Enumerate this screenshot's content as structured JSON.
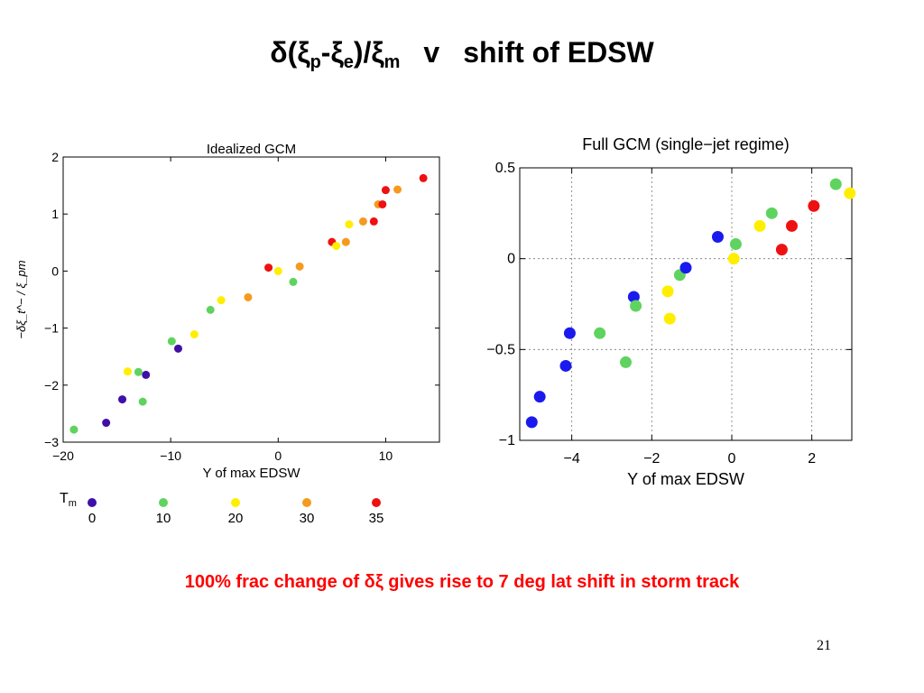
{
  "slide": {
    "title_parts": {
      "delta": "δ(ξ",
      "sub_p": "p",
      "dash": "-ξ",
      "sub_e": "e",
      "slash": ")/ξ",
      "sub_m": "m",
      "v": "v",
      "rest": "shift of EDSW"
    },
    "caption": "100% frac change of δξ gives rise to 7 deg lat shift in storm track",
    "page_number": "21"
  },
  "legend": {
    "label": "T",
    "label_sub": "m",
    "items": [
      {
        "label": "0",
        "color": "#3f0fa8"
      },
      {
        "label": "10",
        "color": "#5fd35f"
      },
      {
        "label": "20",
        "color": "#ffee00"
      },
      {
        "label": "30",
        "color": "#f59a1f"
      },
      {
        "label": "35",
        "color": "#ee1111"
      }
    ]
  },
  "chart_data": [
    {
      "type": "scatter",
      "title": "Idealized GCM",
      "xlabel": "Y of max EDSW",
      "ylabel": "−δξ_t^− / ξ_pm",
      "xlim": [
        -20,
        15
      ],
      "ylim": [
        -3,
        2
      ],
      "xticks": [
        -20,
        -10,
        0,
        10
      ],
      "xtick_labels": [
        "−20",
        "−10",
        "0",
        "10"
      ],
      "yticks": [
        -3,
        -2,
        -1,
        0,
        1,
        2
      ],
      "ytick_labels": [
        "−3",
        "−2",
        "−1",
        "0",
        "1",
        "2"
      ],
      "grid": false,
      "points": [
        {
          "x": -19.0,
          "y": -2.78,
          "color": "#5fd35f"
        },
        {
          "x": -16.0,
          "y": -2.66,
          "color": "#3f0fa8"
        },
        {
          "x": -14.5,
          "y": -2.25,
          "color": "#3f0fa8"
        },
        {
          "x": -14.0,
          "y": -1.76,
          "color": "#ffee00"
        },
        {
          "x": -13.0,
          "y": -1.77,
          "color": "#5fd35f"
        },
        {
          "x": -12.6,
          "y": -2.29,
          "color": "#5fd35f"
        },
        {
          "x": -12.3,
          "y": -1.82,
          "color": "#3f0fa8"
        },
        {
          "x": -9.9,
          "y": -1.23,
          "color": "#5fd35f"
        },
        {
          "x": -9.3,
          "y": -1.36,
          "color": "#3f0fa8"
        },
        {
          "x": -7.8,
          "y": -1.11,
          "color": "#ffee00"
        },
        {
          "x": -6.3,
          "y": -0.68,
          "color": "#5fd35f"
        },
        {
          "x": -5.3,
          "y": -0.51,
          "color": "#ffee00"
        },
        {
          "x": -2.8,
          "y": -0.46,
          "color": "#f59a1f"
        },
        {
          "x": -0.9,
          "y": 0.06,
          "color": "#ee1111"
        },
        {
          "x": 0.0,
          "y": 0.0,
          "color": "#ffee00"
        },
        {
          "x": 1.4,
          "y": -0.19,
          "color": "#5fd35f"
        },
        {
          "x": 2.0,
          "y": 0.08,
          "color": "#f59a1f"
        },
        {
          "x": 5.0,
          "y": 0.51,
          "color": "#ee1111"
        },
        {
          "x": 5.4,
          "y": 0.44,
          "color": "#ffee00"
        },
        {
          "x": 6.3,
          "y": 0.51,
          "color": "#f59a1f"
        },
        {
          "x": 6.6,
          "y": 0.82,
          "color": "#ffee00"
        },
        {
          "x": 7.9,
          "y": 0.87,
          "color": "#f59a1f"
        },
        {
          "x": 8.9,
          "y": 0.87,
          "color": "#ee1111"
        },
        {
          "x": 9.3,
          "y": 1.17,
          "color": "#f59a1f"
        },
        {
          "x": 9.7,
          "y": 1.17,
          "color": "#ee1111"
        },
        {
          "x": 10.0,
          "y": 1.42,
          "color": "#ee1111"
        },
        {
          "x": 11.1,
          "y": 1.43,
          "color": "#f59a1f"
        },
        {
          "x": 13.5,
          "y": 1.63,
          "color": "#ee1111"
        }
      ]
    },
    {
      "type": "scatter",
      "title": "Full GCM (single−jet regime)",
      "xlabel": "Y of max EDSW",
      "ylabel": "",
      "xlim": [
        -5.3,
        3.0
      ],
      "ylim": [
        -1.0,
        0.5
      ],
      "xticks": [
        -4,
        -2,
        0,
        2
      ],
      "xtick_labels": [
        "−4",
        "−2",
        "0",
        "2"
      ],
      "yticks": [
        -1,
        -0.5,
        0,
        0.5
      ],
      "ytick_labels": [
        "−1",
        "−0.5",
        "0",
        "0.5"
      ],
      "grid": true,
      "points": [
        {
          "x": -5.0,
          "y": -0.9,
          "color": "#1a1aee"
        },
        {
          "x": -4.8,
          "y": -0.76,
          "color": "#1a1aee"
        },
        {
          "x": -4.15,
          "y": -0.59,
          "color": "#1a1aee"
        },
        {
          "x": -4.05,
          "y": -0.41,
          "color": "#1a1aee"
        },
        {
          "x": -3.3,
          "y": -0.41,
          "color": "#5fd35f"
        },
        {
          "x": -2.65,
          "y": -0.57,
          "color": "#5fd35f"
        },
        {
          "x": -2.45,
          "y": -0.21,
          "color": "#1a1aee"
        },
        {
          "x": -2.4,
          "y": -0.26,
          "color": "#5fd35f"
        },
        {
          "x": -1.6,
          "y": -0.18,
          "color": "#ffee00"
        },
        {
          "x": -1.55,
          "y": -0.33,
          "color": "#ffee00"
        },
        {
          "x": -1.3,
          "y": -0.09,
          "color": "#5fd35f"
        },
        {
          "x": -1.15,
          "y": -0.05,
          "color": "#1a1aee"
        },
        {
          "x": -0.35,
          "y": 0.12,
          "color": "#1a1aee"
        },
        {
          "x": 0.05,
          "y": 0.0,
          "color": "#ffee00"
        },
        {
          "x": 0.1,
          "y": 0.08,
          "color": "#5fd35f"
        },
        {
          "x": 0.7,
          "y": 0.18,
          "color": "#ffee00"
        },
        {
          "x": 1.0,
          "y": 0.25,
          "color": "#5fd35f"
        },
        {
          "x": 1.25,
          "y": 0.05,
          "color": "#ee1111"
        },
        {
          "x": 1.5,
          "y": 0.18,
          "color": "#ee1111"
        },
        {
          "x": 2.05,
          "y": 0.29,
          "color": "#ee1111"
        },
        {
          "x": 2.6,
          "y": 0.41,
          "color": "#5fd35f"
        },
        {
          "x": 2.95,
          "y": 0.36,
          "color": "#ffee00"
        }
      ]
    }
  ]
}
